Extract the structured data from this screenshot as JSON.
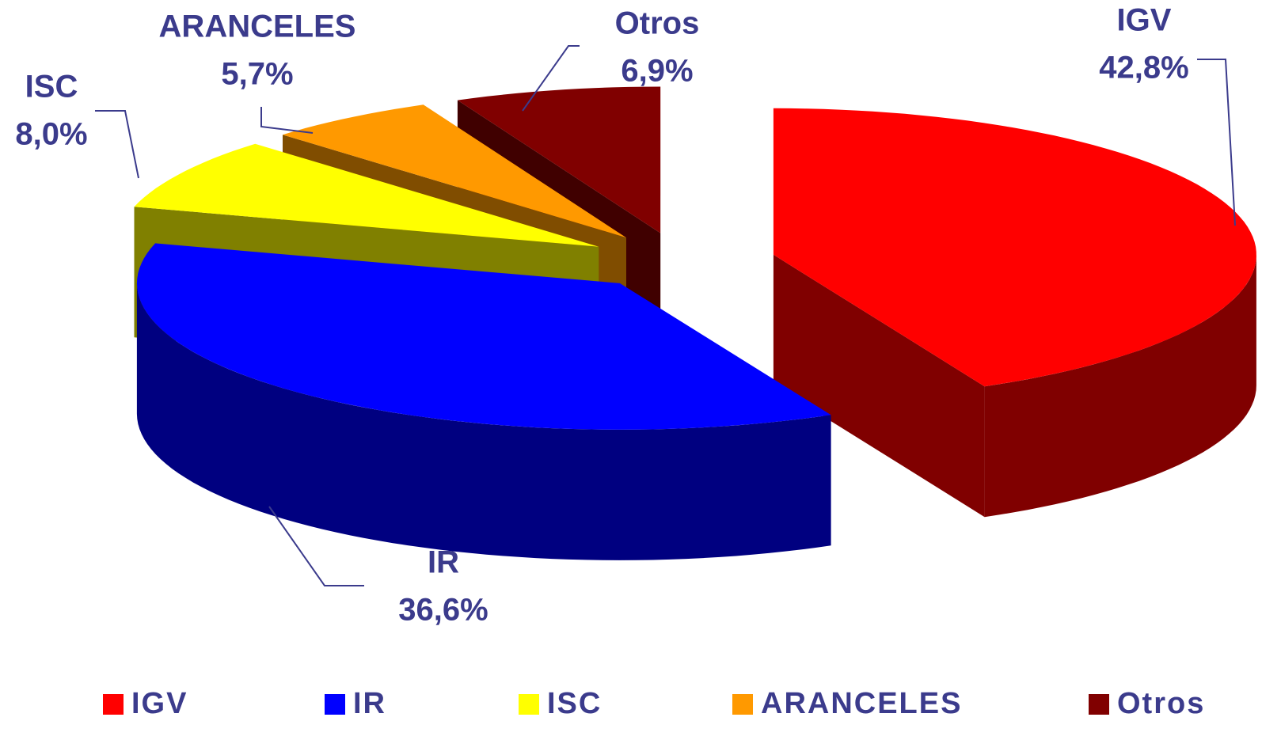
{
  "chart_data": {
    "type": "pie",
    "categories": [
      "IGV",
      "IR",
      "ISC",
      "ARANCELES",
      "Otros"
    ],
    "values": [
      42.8,
      36.6,
      8.0,
      5.7,
      6.9
    ],
    "value_labels": [
      "42,8%",
      "36,6%",
      "8,0%",
      "5,7%",
      "6,9%"
    ],
    "colors": [
      "#ff0000",
      "#0000ff",
      "#ffff00",
      "#ff9900",
      "#800000"
    ]
  }
}
